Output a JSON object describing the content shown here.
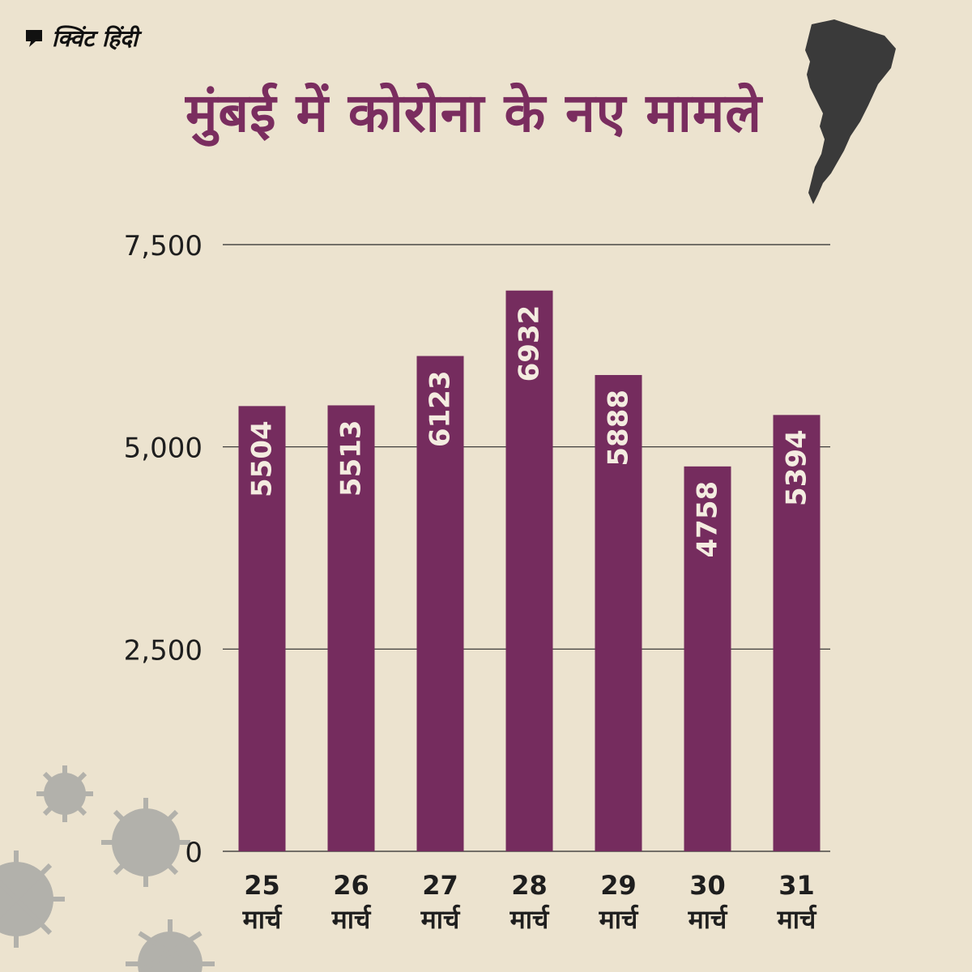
{
  "brand": {
    "name": "क्विंट हिंदी"
  },
  "header": {
    "title": "मुंबई में कोरोना के नए मामले"
  },
  "colors": {
    "bar": "#752c5e",
    "title": "#7a2d5f",
    "background": "#ece3cf",
    "map": "#3a3a3a",
    "virus": "#a9a9a5"
  },
  "icons": [
    "quote-logo-icon",
    "mumbai-map-icon",
    "virus-icon"
  ],
  "chart_data": {
    "type": "bar",
    "title": "मुंबई में कोरोना के नए मामले",
    "categories": [
      {
        "day": "25",
        "month": "मार्च"
      },
      {
        "day": "26",
        "month": "मार्च"
      },
      {
        "day": "27",
        "month": "मार्च"
      },
      {
        "day": "28",
        "month": "मार्च"
      },
      {
        "day": "29",
        "month": "मार्च"
      },
      {
        "day": "30",
        "month": "मार्च"
      },
      {
        "day": "31",
        "month": "मार्च"
      }
    ],
    "values": [
      5504,
      5513,
      6123,
      6932,
      5888,
      4758,
      5394
    ],
    "data_labels": [
      "5504",
      "5513",
      "6123",
      "6932",
      "5888",
      "4758",
      "5394"
    ],
    "yticks": [
      0,
      2500,
      5000,
      7500
    ],
    "ytick_labels": [
      "0",
      "2,500",
      "5,000",
      "7,500"
    ],
    "ylim": [
      0,
      7500
    ],
    "grid": true,
    "xlabel": "",
    "ylabel": ""
  }
}
